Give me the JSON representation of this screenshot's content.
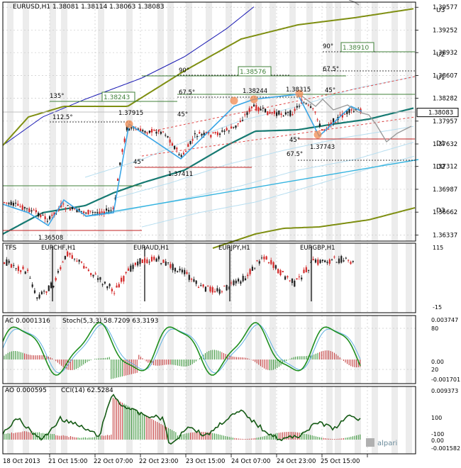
{
  "main": {
    "symbol_label": "EURUSD,H1",
    "ohlc": "1.38081 1.38114 1.38063 1.38083",
    "current_price": "1.38083",
    "price_ticks": [
      "1.39577",
      "1.39252",
      "1.38932",
      "1.38607",
      "1.38282",
      "1.37957",
      "1.37632",
      "1.37312",
      "1.36987",
      "1.36662",
      "1.36337"
    ],
    "level_labels": [
      "U3",
      "U2",
      "U1",
      "LB",
      "D1",
      "D2",
      "D3"
    ],
    "price_labels": [
      "1.38910",
      "1.38576",
      "1.38243",
      "1.38244",
      "1.38315",
      "1.37915",
      "1.37743",
      "1.37411",
      "1.36508"
    ],
    "angle_labels": [
      "90°",
      "90°",
      "67.5°",
      "67.5°",
      "45°",
      "135°",
      "112.5°",
      "45°",
      "45°",
      "45°",
      "67.5°"
    ]
  },
  "tfs": {
    "label": "TFS",
    "pairs": [
      "EURCHF,H1",
      "EURAUD,H1",
      "EURJPY,H1",
      "EURGBP,H1"
    ],
    "ticks": [
      "115",
      "-15"
    ]
  },
  "ac": {
    "label": "AC 0.0001316",
    "stoch_label": "Stoch(5,3,3) 58.7209 63.3193",
    "ticks": [
      "0.003747",
      "80",
      "0.00",
      "20",
      "-0.001701"
    ]
  },
  "ao": {
    "label": "AO 0.000595",
    "cci_label": "CCI(14) 62.5284",
    "ticks": [
      "0.009373",
      "100",
      "-100",
      "0.00",
      "-0.001582"
    ]
  },
  "x_axis": [
    "18 Oct 2013",
    "21 Oct 15:00",
    "22 Oct 07:00",
    "22 Oct 23:00",
    "23 Oct 15:00",
    "24 Oct 07:00",
    "24 Oct 23:00",
    "25 Oct 15:00"
  ],
  "logo": "alpari",
  "chart_data": [
    {
      "type": "line",
      "title": "EURUSD,H1",
      "x": [
        "18 Oct 2013",
        "21 Oct 15:00",
        "22 Oct 07:00",
        "22 Oct 23:00",
        "23 Oct 15:00",
        "24 Oct 07:00",
        "24 Oct 23:00",
        "25 Oct 15:00"
      ],
      "ylim": [
        1.3625,
        1.3965
      ],
      "series": [
        {
          "name": "EURUSD,H1",
          "values": [
            1.3675,
            1.3668,
            1.3792,
            1.3742,
            1.379,
            1.3824,
            1.3831,
            1.3808
          ]
        }
      ],
      "levels": {
        "U3": 1.3955,
        "U2": 1.3892,
        "U1": 1.3859,
        "LB": 1.3808,
        "D1": 1.3765,
        "D2": 1.3732,
        "D3": 1.367
      }
    },
    {
      "type": "line",
      "title": "AC 0.0001316",
      "ylim": [
        -0.0017,
        0.0037
      ]
    },
    {
      "type": "line",
      "title": "AO 0.000595",
      "ylim": [
        -0.0016,
        0.0094
      ]
    }
  ],
  "colors": {
    "grid": "#c8c8c8",
    "candle_up": "#1a1a1a",
    "candle_down": "#d42a2a",
    "olive": "#7f8f12",
    "navy": "#1c1cb4",
    "teal": "#167a72",
    "skyblue": "#34b4e0",
    "zigzag": "#3aa6e6",
    "forecast": "#9a9a9a",
    "level": "#40803a",
    "stoch_main": "#1f8f1f",
    "stoch_signal": "#5fb0e0",
    "cci": "#155a15",
    "highlight": "#f08a50"
  }
}
